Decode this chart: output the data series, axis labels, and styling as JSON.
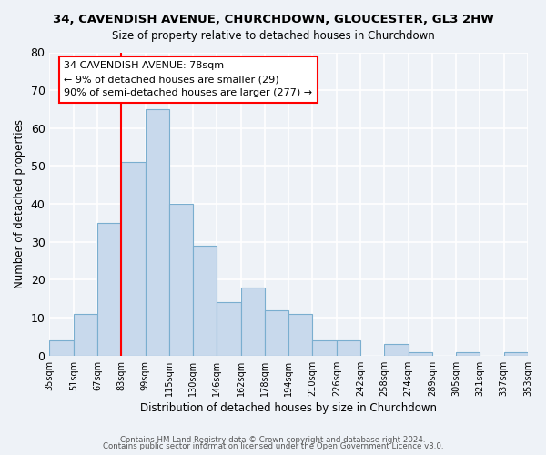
{
  "title": "34, CAVENDISH AVENUE, CHURCHDOWN, GLOUCESTER, GL3 2HW",
  "subtitle": "Size of property relative to detached houses in Churchdown",
  "xlabel": "Distribution of detached houses by size in Churchdown",
  "ylabel": "Number of detached properties",
  "bar_color": "#c8d9ec",
  "bar_edge_color": "#7aaecf",
  "bin_labels": [
    "35sqm",
    "51sqm",
    "67sqm",
    "83sqm",
    "99sqm",
    "115sqm",
    "130sqm",
    "146sqm",
    "162sqm",
    "178sqm",
    "194sqm",
    "210sqm",
    "226sqm",
    "242sqm",
    "258sqm",
    "274sqm",
    "289sqm",
    "305sqm",
    "321sqm",
    "337sqm",
    "353sqm"
  ],
  "bar_values": [
    4,
    11,
    35,
    51,
    65,
    40,
    29,
    14,
    18,
    12,
    11,
    4,
    4,
    0,
    3,
    1,
    0,
    1,
    0,
    1
  ],
  "ylim": [
    0,
    80
  ],
  "yticks": [
    0,
    10,
    20,
    30,
    40,
    50,
    60,
    70,
    80
  ],
  "red_line_bin_index": 3,
  "annotation_line1": "34 CAVENDISH AVENUE: 78sqm",
  "annotation_line2": "← 9% of detached houses are smaller (29)",
  "annotation_line3": "90% of semi-detached houses are larger (277) →",
  "footnote1": "Contains HM Land Registry data © Crown copyright and database right 2024.",
  "footnote2": "Contains public sector information licensed under the Open Government Licence v3.0.",
  "background_color": "#eef2f7",
  "plot_background": "#eef2f7",
  "grid_color": "#ffffff"
}
